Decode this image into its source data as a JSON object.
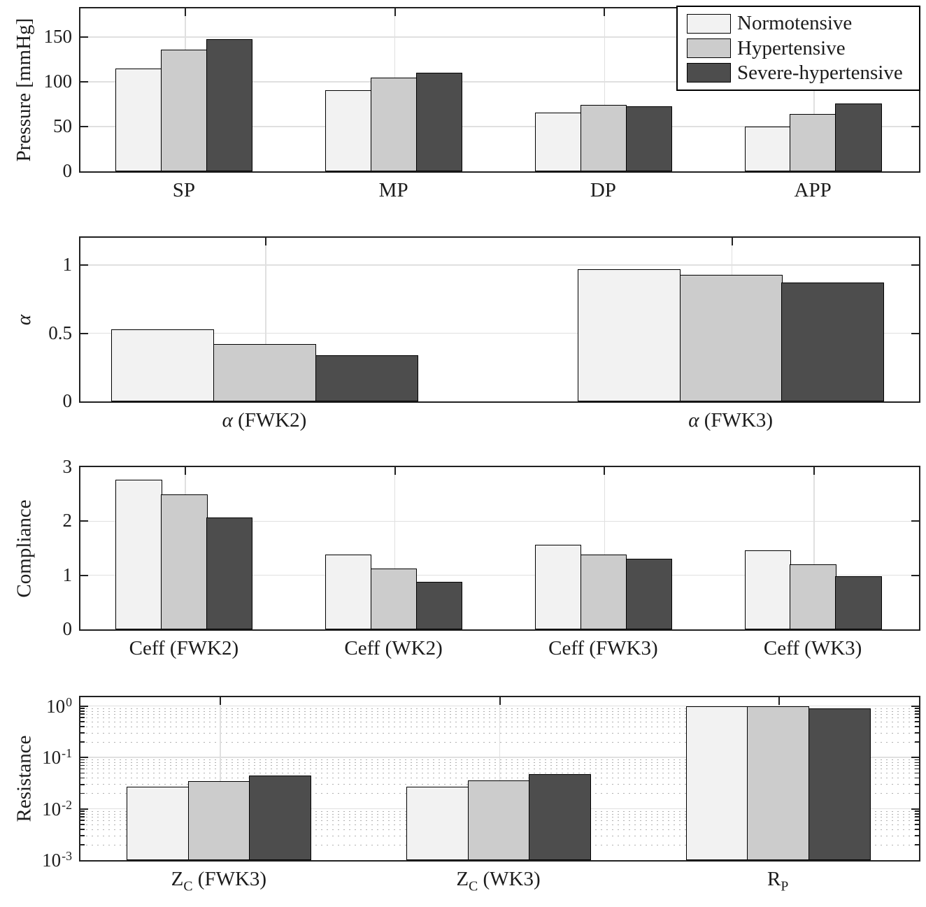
{
  "figure": {
    "background": "#ffffff",
    "text_color": "#1c1c1c",
    "frame_color": "#212121",
    "grid_color": "#e0e0e0",
    "minor_grid_color": "#b0b0b0",
    "series_colors": [
      "#f2f2f2",
      "#cccccc",
      "#4d4d4d"
    ]
  },
  "legend": {
    "position": "top-right-of-first-chart",
    "entries": [
      {
        "label": "Normotensive",
        "color": "#f2f2f2"
      },
      {
        "label": "Hypertensive",
        "color": "#cccccc"
      },
      {
        "label": "Severe-hypertensive",
        "color": "#4d4d4d"
      }
    ]
  },
  "chart_data": [
    {
      "id": "pressure",
      "type": "bar",
      "scale": "linear",
      "title": "",
      "ylabel": [
        {
          "t": "Pressure [mmHg]"
        }
      ],
      "ylabel_text": "Pressure [mmHg]",
      "ylim": [
        0,
        182
      ],
      "grid": "major",
      "yticks": [
        {
          "label": "0",
          "v": 0
        },
        {
          "label": "50",
          "v": 50
        },
        {
          "label": "100",
          "v": 100
        },
        {
          "label": "150",
          "v": 150
        }
      ],
      "categories": [
        [
          {
            "t": "SP"
          }
        ],
        [
          {
            "t": "MP"
          }
        ],
        [
          {
            "t": "DP"
          }
        ],
        [
          {
            "t": "APP"
          }
        ]
      ],
      "categories_text": [
        "SP",
        "MP",
        "DP",
        "APP"
      ],
      "series": [
        {
          "name": "Normotensive",
          "values": [
            115,
            91,
            66,
            50
          ]
        },
        {
          "name": "Hypertensive",
          "values": [
            136,
            105,
            74,
            64
          ]
        },
        {
          "name": "Severe-hypertensive",
          "values": [
            148,
            110,
            73,
            76
          ]
        }
      ],
      "group_center_fracs": [
        0.125,
        0.375,
        0.625,
        0.875
      ],
      "bar_width_frac": 0.0553
    },
    {
      "id": "alpha",
      "type": "bar",
      "scale": "linear",
      "title": "",
      "ylabel": [
        {
          "t": "α",
          "italic": true
        }
      ],
      "ylabel_text": "α",
      "ylim": [
        0,
        1.2
      ],
      "grid": "major",
      "yticks": [
        {
          "label": "0",
          "v": 0
        },
        {
          "label": "0.5",
          "v": 0.5
        },
        {
          "label": "1",
          "v": 1
        }
      ],
      "categories": [
        [
          {
            "t": "α",
            "italic": true
          },
          {
            "t": " (FWK2)"
          }
        ],
        [
          {
            "t": "α",
            "italic": true
          },
          {
            "t": " (FWK3)"
          }
        ]
      ],
      "categories_text": [
        "α (FWK2)",
        "α (FWK3)"
      ],
      "series": [
        {
          "name": "Normotensive",
          "values": [
            0.53,
            0.97
          ]
        },
        {
          "name": "Hypertensive",
          "values": [
            0.42,
            0.93
          ]
        },
        {
          "name": "Severe-hypertensive",
          "values": [
            0.34,
            0.87
          ]
        }
      ],
      "group_center_fracs": [
        0.221,
        0.777
      ],
      "bar_width_frac": 0.1228
    },
    {
      "id": "compliance",
      "type": "bar",
      "scale": "linear",
      "title": "",
      "ylabel": [
        {
          "t": "Compliance"
        }
      ],
      "ylabel_text": "Compliance",
      "ylim": [
        0,
        3
      ],
      "grid": "major",
      "yticks": [
        {
          "label": "0",
          "v": 0
        },
        {
          "label": "1",
          "v": 1
        },
        {
          "label": "2",
          "v": 2
        },
        {
          "label": "3",
          "v": 3
        }
      ],
      "categories": [
        [
          {
            "t": "Ceff (FWK2)"
          }
        ],
        [
          {
            "t": "Ceff (WK2)"
          }
        ],
        [
          {
            "t": "Ceff (FWK3)"
          }
        ],
        [
          {
            "t": "Ceff (WK3)"
          }
        ]
      ],
      "categories_text": [
        "Ceff (FWK2)",
        "Ceff (WK2)",
        "Ceff (FWK3)",
        "Ceff (WK3)"
      ],
      "series": [
        {
          "name": "Normotensive",
          "values": [
            2.77,
            1.38,
            1.56,
            1.46
          ]
        },
        {
          "name": "Hypertensive",
          "values": [
            2.5,
            1.12,
            1.39,
            1.2
          ]
        },
        {
          "name": "Severe-hypertensive",
          "values": [
            2.07,
            0.88,
            1.3,
            0.98
          ]
        }
      ],
      "group_center_fracs": [
        0.125,
        0.375,
        0.625,
        0.875
      ],
      "bar_width_frac": 0.0553
    },
    {
      "id": "resistance",
      "type": "bar",
      "scale": "log",
      "title": "",
      "ylabel": [
        {
          "t": "Resistance"
        }
      ],
      "ylabel_text": "Resistance",
      "ylim": [
        0.001,
        1.48
      ],
      "grid": "major+minor",
      "yticks": [
        {
          "label": "10",
          "exp": "0",
          "v": 1
        },
        {
          "label": "10",
          "exp": "-1",
          "v": 0.1
        },
        {
          "label": "10",
          "exp": "-2",
          "v": 0.01
        },
        {
          "label": "10",
          "exp": "-3",
          "v": 0.001
        }
      ],
      "categories": [
        [
          {
            "t": "Z"
          },
          {
            "t": "C",
            "sub": true
          },
          {
            "t": " (FWK3)"
          }
        ],
        [
          {
            "t": "Z"
          },
          {
            "t": "C",
            "sub": true
          },
          {
            "t": " (WK3)"
          }
        ],
        [
          {
            "t": "R"
          },
          {
            "t": "P",
            "sub": true
          }
        ]
      ],
      "categories_text": [
        "Z_C (FWK3)",
        "Z_C (WK3)",
        "R_P"
      ],
      "series": [
        {
          "name": "Normotensive",
          "values": [
            0.027,
            0.027,
            0.99
          ]
        },
        {
          "name": "Hypertensive",
          "values": [
            0.034,
            0.036,
            0.98
          ]
        },
        {
          "name": "Severe-hypertensive",
          "values": [
            0.044,
            0.047,
            0.9
          ]
        }
      ],
      "group_center_fracs": [
        0.1667,
        0.5,
        0.8333
      ],
      "bar_width_frac": 0.0742
    }
  ]
}
